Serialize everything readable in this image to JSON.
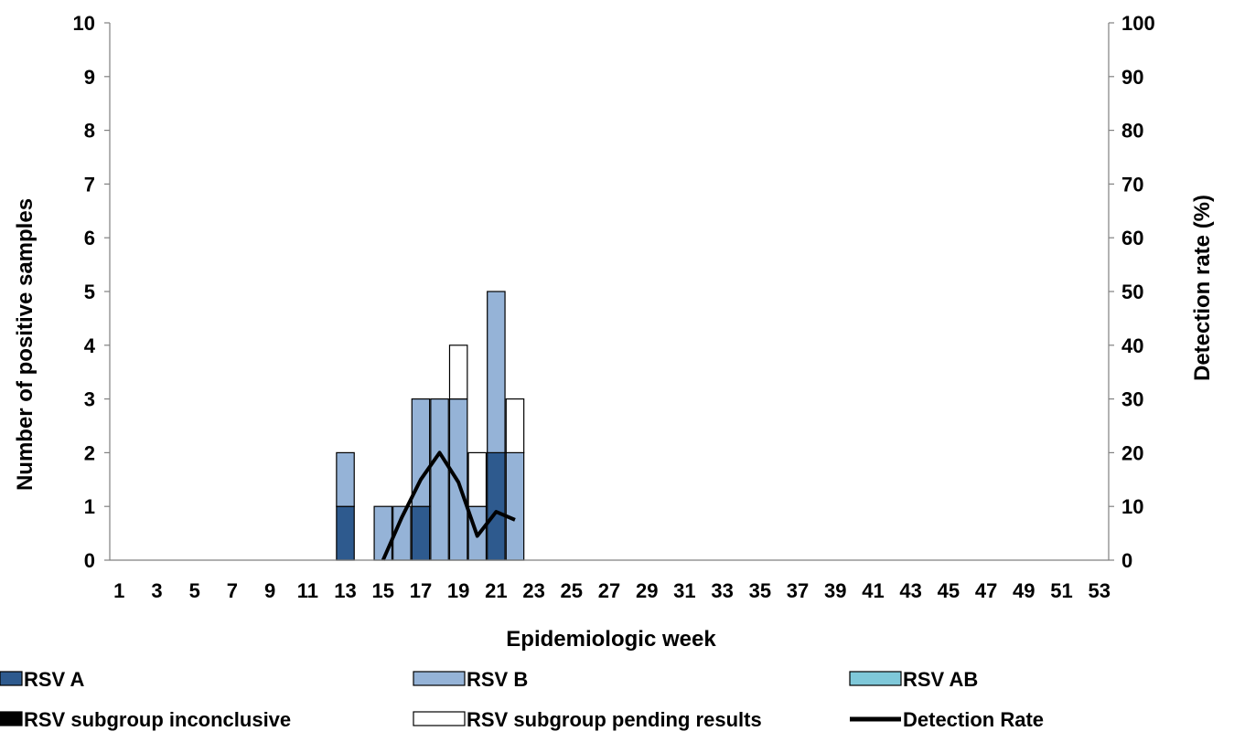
{
  "chart_data": {
    "type": "bar",
    "stacked": true,
    "x": [
      1,
      2,
      3,
      4,
      5,
      6,
      7,
      8,
      9,
      10,
      11,
      12,
      13,
      14,
      15,
      16,
      17,
      18,
      19,
      20,
      21,
      22,
      23,
      24,
      25,
      26,
      27,
      28,
      29,
      30,
      31,
      32,
      33,
      34,
      35,
      36,
      37,
      38,
      39,
      40,
      41,
      42,
      43,
      44,
      45,
      46,
      47,
      48,
      49,
      50,
      51,
      52,
      53
    ],
    "xticklabels": [
      "1",
      "3",
      "5",
      "7",
      "9",
      "11",
      "13",
      "15",
      "17",
      "19",
      "21",
      "23",
      "25",
      "27",
      "29",
      "31",
      "33",
      "35",
      "37",
      "39",
      "41",
      "43",
      "45",
      "47",
      "49",
      "51",
      "53"
    ],
    "xlabel": "Epidemiologic week",
    "ylabel": "Number of positive samples",
    "ylabel_right": "Detection rate (%)",
    "ylim": [
      0,
      10
    ],
    "ylim_right": [
      0,
      100
    ],
    "yticks": [
      "0",
      "1",
      "2",
      "3",
      "4",
      "5",
      "6",
      "7",
      "8",
      "9",
      "10"
    ],
    "yticks_right": [
      "0",
      "10",
      "20",
      "30",
      "40",
      "50",
      "60",
      "70",
      "80",
      "90",
      "100"
    ],
    "series": [
      {
        "name": "RSV A",
        "color": "#2e5a8e",
        "axis": "left",
        "points": [
          [
            13,
            1
          ],
          [
            17,
            1
          ],
          [
            21,
            2
          ]
        ]
      },
      {
        "name": "RSV B",
        "color": "#95b3d7",
        "axis": "left",
        "points": [
          [
            13,
            1
          ],
          [
            15,
            1
          ],
          [
            16,
            1
          ],
          [
            17,
            2
          ],
          [
            18,
            3
          ],
          [
            19,
            3
          ],
          [
            20,
            1
          ],
          [
            21,
            3
          ],
          [
            22,
            2
          ]
        ]
      },
      {
        "name": "RSV AB",
        "color": "#7fc8d9",
        "axis": "left",
        "points": []
      },
      {
        "name": "RSV subgroup inconclusive",
        "color": "#000000",
        "axis": "left",
        "points": []
      },
      {
        "name": "RSV subgroup pending results",
        "color": "#ffffff",
        "axis": "left",
        "points": [
          [
            19,
            1
          ],
          [
            20,
            1
          ],
          [
            22,
            1
          ]
        ]
      },
      {
        "name": "Detection Rate",
        "type": "line",
        "color": "#000000",
        "axis": "right",
        "points": [
          [
            15,
            0
          ],
          [
            16,
            8
          ],
          [
            17,
            15
          ],
          [
            18,
            20
          ],
          [
            19,
            14.5
          ],
          [
            20,
            4.5
          ],
          [
            21,
            9
          ],
          [
            22,
            7.5
          ]
        ]
      }
    ],
    "legend_position": "bottom",
    "grid": false
  }
}
